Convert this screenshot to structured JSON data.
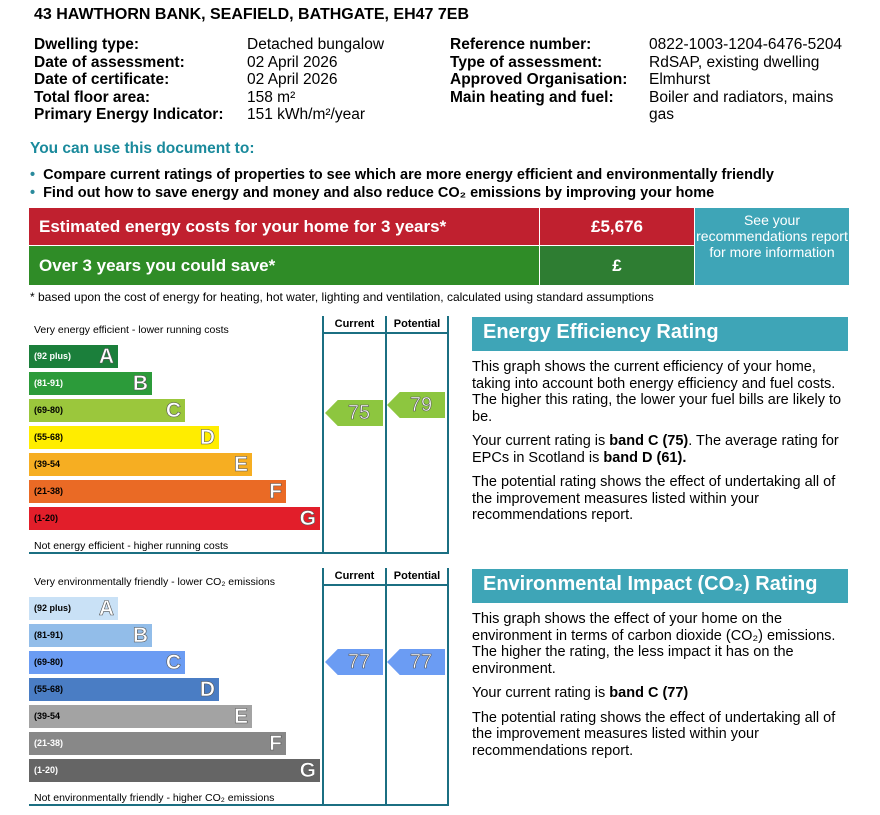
{
  "address": "43 HAWTHORN BANK, SEAFIELD, BATHGATE, EH47 7EB",
  "details_left": [
    {
      "label": "Dwelling type:",
      "value": "Detached bungalow"
    },
    {
      "label": "Date of assessment:",
      "value": "02 April 2026"
    },
    {
      "label": "Date of certificate:",
      "value": "02 April 2026"
    },
    {
      "label": "Total floor area:",
      "value": "158 m²"
    },
    {
      "label": "Primary Energy Indicator:",
      "value": "151 kWh/m²/year"
    }
  ],
  "details_right": [
    {
      "label": "Reference number:",
      "value": "0822-1003-1204-6476-5204"
    },
    {
      "label": "Type of assessment:",
      "value": "RdSAP, existing dwelling"
    },
    {
      "label": "Approved Organisation:",
      "value": "Elmhurst"
    },
    {
      "label": "Main heating and fuel:",
      "value": "Boiler and radiators, mains gas"
    }
  ],
  "use_title": "You can use this document to:",
  "bullets": [
    "Compare current ratings of properties to see which are more energy efficient and environmentally friendly",
    "Find out how to save energy and money and also reduce CO₂ emissions by improving your home"
  ],
  "costs": {
    "estimated_label": "Estimated energy costs for your home for 3 years*",
    "estimated_value": "£5,676",
    "save_label": "Over 3 years you could save*",
    "save_value": "£",
    "recommendations": "See your recommendations report for more information",
    "footnote": "* based upon the cost of energy for heating, hot water, lighting and ventilation, calculated using standard assumptions"
  },
  "energy_graph": {
    "top_label": "Very energy efficient - lower running costs",
    "bottom_label": "Not energy efficient - higher running costs",
    "col_current": "Current",
    "col_potential": "Potential",
    "bands": [
      {
        "range": "(92 plus)",
        "letter": "A",
        "color": "#1b7f3b",
        "range_color": "#ffffff"
      },
      {
        "range": "(81-91)",
        "letter": "B",
        "color": "#2c9b3a",
        "range_color": "#ffffff"
      },
      {
        "range": "(69-80)",
        "letter": "C",
        "color": "#9bc73c",
        "range_color": "#000000"
      },
      {
        "range": "(55-68)",
        "letter": "D",
        "color": "#ffed00",
        "range_color": "#000000"
      },
      {
        "range": "(39-54",
        "letter": "E",
        "color": "#f6ae22",
        "range_color": "#000000"
      },
      {
        "range": "(21-38)",
        "letter": "F",
        "color": "#ea6a25",
        "range_color": "#000000"
      },
      {
        "range": "(1-20)",
        "letter": "G",
        "color": "#e21e2a",
        "range_color": "#000000"
      }
    ],
    "current": "75",
    "potential": "79",
    "arrow_color": "#8dc63f"
  },
  "env_graph": {
    "top_label": "Very environmentally friendly - lower CO₂ emissions",
    "bottom_label": "Not environmentally friendly - higher CO₂ emissions",
    "col_current": "Current",
    "col_potential": "Potential",
    "bands": [
      {
        "range": "(92 plus)",
        "letter": "A",
        "color": "#c9e1f6",
        "range_color": "#000000"
      },
      {
        "range": "(81-91)",
        "letter": "B",
        "color": "#92bde9",
        "range_color": "#000000"
      },
      {
        "range": "(69-80)",
        "letter": "C",
        "color": "#6b9cf3",
        "range_color": "#000000"
      },
      {
        "range": "(55-68)",
        "letter": "D",
        "color": "#4a7dc4",
        "range_color": "#000000"
      },
      {
        "range": "(39-54",
        "letter": "E",
        "color": "#a3a3a3",
        "range_color": "#000000"
      },
      {
        "range": "(21-38)",
        "letter": "F",
        "color": "#888888",
        "range_color": "#ffffff"
      },
      {
        "range": "(1-20)",
        "letter": "G",
        "color": "#656565",
        "range_color": "#ffffff"
      }
    ],
    "current": "77",
    "potential": "77",
    "arrow_color": "#6b9cf3"
  },
  "energy_info": {
    "title": "Energy Efficiency Rating",
    "p1": "This graph shows the current efficiency of your home, taking into account both energy efficiency and fuel costs. The higher this rating, the lower your fuel bills are likely to be.",
    "p2_pre": "Your current rating is ",
    "p2_bold1": "band C (75)",
    "p2_mid": ". The average rating for EPCs in Scotland is ",
    "p2_bold2": "band D (61).",
    "p3": "The potential rating shows the effect of undertaking all of the improvement measures listed within your recommendations report."
  },
  "env_info": {
    "title": "Environmental Impact (CO₂) Rating",
    "p1": "This graph shows the effect of your home on the environment in terms of carbon dioxide (CO₂) emissions. The higher the rating, the less impact it has on the environment.",
    "p2_pre": "Your current rating is ",
    "p2_bold": "band C (77)",
    "p3": "The potential rating shows the effect of undertaking all of the improvement measures listed within your recommendations report."
  }
}
